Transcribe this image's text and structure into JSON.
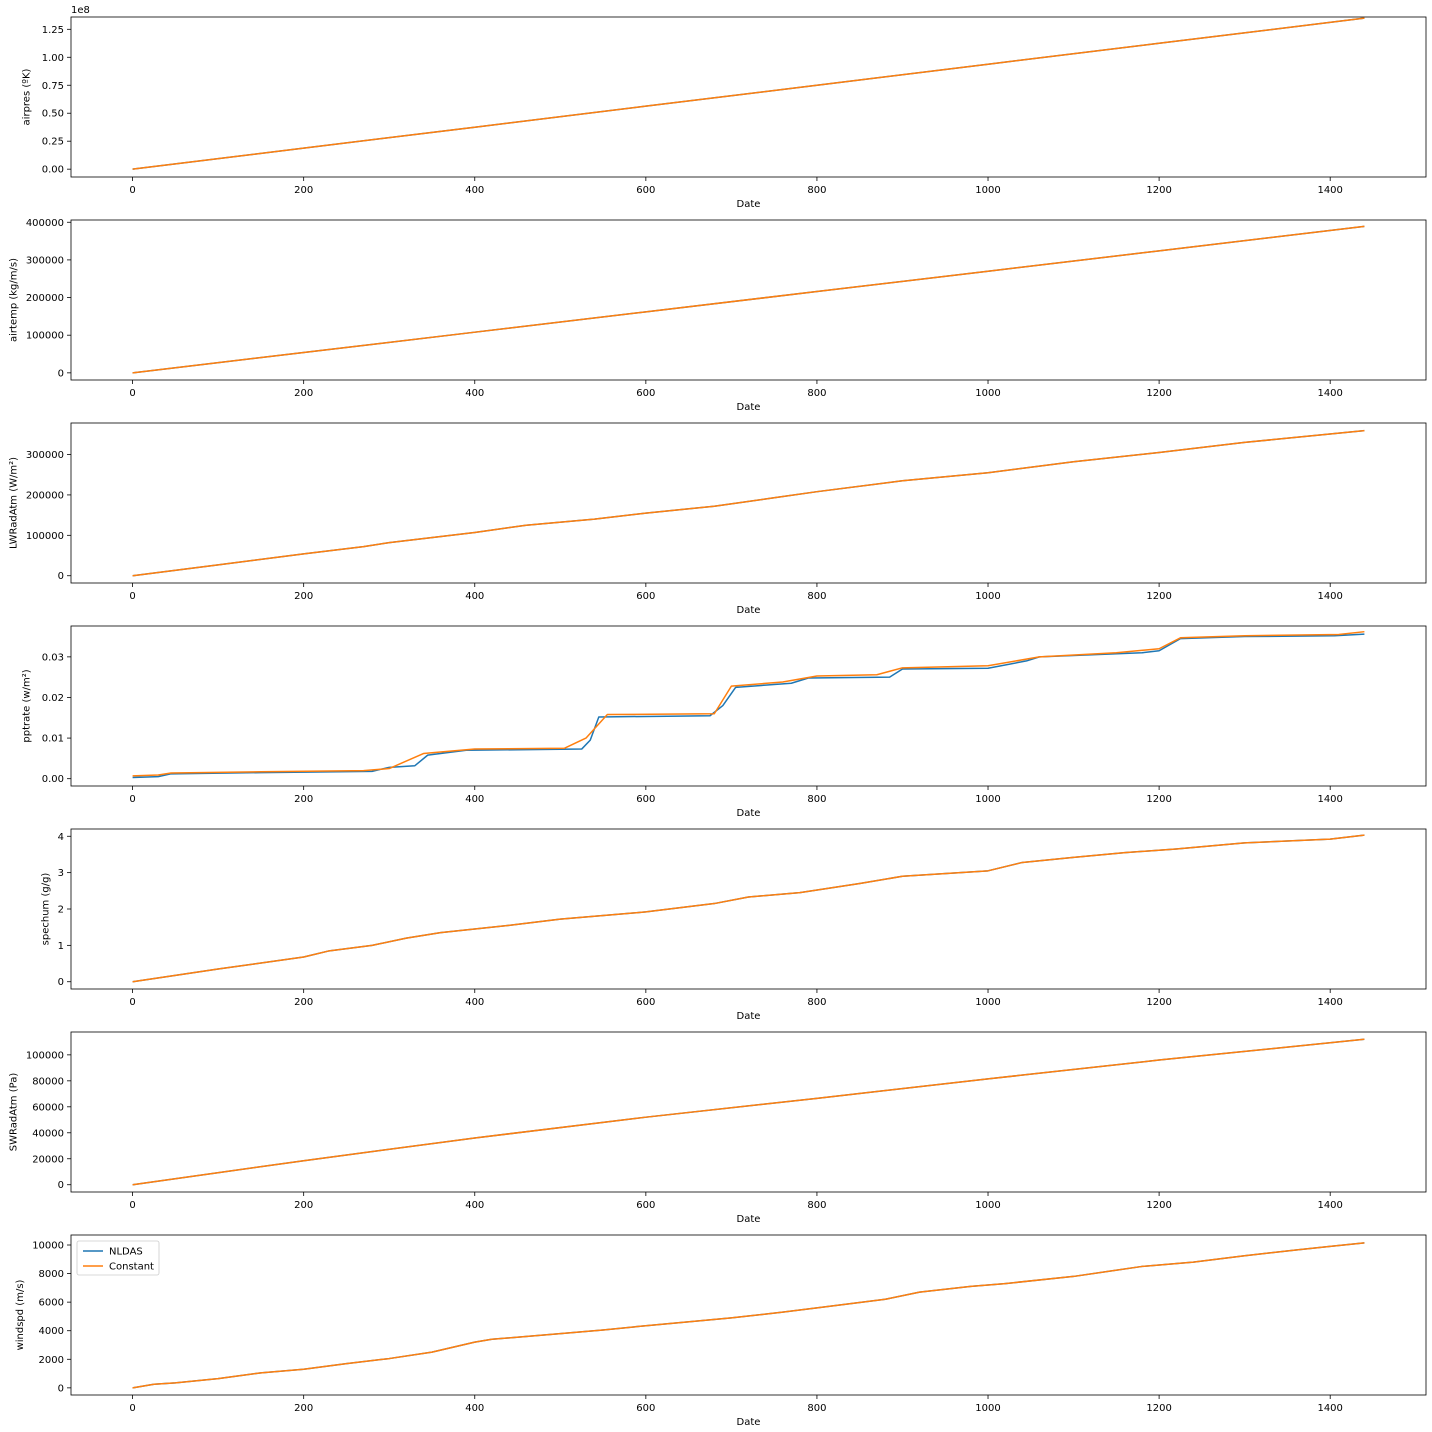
{
  "chart_data": [
    {
      "type": "line",
      "xlabel": "Date",
      "ylabel": "airpres (ºK)",
      "y_offset_label": "1e8",
      "xlim": [
        -72,
        1512
      ],
      "ylim": [
        -0.07,
        1.36
      ],
      "x_ticks": [
        0,
        200,
        400,
        600,
        800,
        1000,
        1200,
        1400
      ],
      "x_tick_labels": [
        "0",
        "200",
        "400",
        "600",
        "800",
        "1000",
        "1200",
        "1400"
      ],
      "y_ticks": [
        0.0,
        0.25,
        0.5,
        0.75,
        1.0,
        1.25
      ],
      "y_tick_labels": [
        "0.00",
        "0.25",
        "0.50",
        "0.75",
        "1.00",
        "1.25"
      ],
      "grid": false,
      "series": [
        {
          "name": "NLDAS",
          "color": "#1f77b4",
          "x": [
            0,
            200,
            400,
            600,
            800,
            1000,
            1200,
            1440
          ],
          "y": [
            0.0,
            0.188,
            0.375,
            0.563,
            0.75,
            0.938,
            1.125,
            1.35
          ]
        },
        {
          "name": "Constant",
          "color": "#ff7f0e",
          "x": [
            0,
            200,
            400,
            600,
            800,
            1000,
            1200,
            1440
          ],
          "y": [
            0.0,
            0.188,
            0.375,
            0.563,
            0.75,
            0.938,
            1.125,
            1.35
          ]
        }
      ]
    },
    {
      "type": "line",
      "xlabel": "Date",
      "ylabel": "airtemp (kg/m/s)",
      "xlim": [
        -72,
        1512
      ],
      "ylim": [
        -19000,
        406000
      ],
      "x_ticks": [
        0,
        200,
        400,
        600,
        800,
        1000,
        1200,
        1400
      ],
      "x_tick_labels": [
        "0",
        "200",
        "400",
        "600",
        "800",
        "1000",
        "1200",
        "1400"
      ],
      "y_ticks": [
        0,
        100000,
        200000,
        300000,
        400000
      ],
      "y_tick_labels": [
        "0",
        "100000",
        "200000",
        "300000",
        "400000"
      ],
      "grid": false,
      "series": [
        {
          "name": "NLDAS",
          "color": "#1f77b4",
          "x": [
            0,
            200,
            400,
            600,
            800,
            1000,
            1200,
            1440
          ],
          "y": [
            0,
            54000,
            108000,
            162000,
            216000,
            270000,
            324000,
            389000
          ]
        },
        {
          "name": "Constant",
          "color": "#ff7f0e",
          "x": [
            0,
            200,
            400,
            600,
            800,
            1000,
            1200,
            1440
          ],
          "y": [
            0,
            54000,
            108000,
            162000,
            216000,
            270000,
            324000,
            389000
          ]
        }
      ]
    },
    {
      "type": "line",
      "xlabel": "Date",
      "ylabel": "LWRadAtm (W/m²)",
      "xlim": [
        -72,
        1512
      ],
      "ylim": [
        -18000,
        378000
      ],
      "x_ticks": [
        0,
        200,
        400,
        600,
        800,
        1000,
        1200,
        1400
      ],
      "x_tick_labels": [
        "0",
        "200",
        "400",
        "600",
        "800",
        "1000",
        "1200",
        "1400"
      ],
      "y_ticks": [
        0,
        100000,
        200000,
        300000
      ],
      "y_tick_labels": [
        "0",
        "100000",
        "200000",
        "300000"
      ],
      "grid": false,
      "series": [
        {
          "name": "NLDAS",
          "color": "#1f77b4",
          "x": [
            0,
            100,
            200,
            270,
            300,
            400,
            460,
            540,
            600,
            680,
            750,
            800,
            900,
            1000,
            1100,
            1200,
            1300,
            1440
          ],
          "y": [
            0,
            27000,
            54000,
            72000,
            82000,
            107000,
            125000,
            140000,
            155000,
            172000,
            193000,
            208000,
            235000,
            255000,
            282000,
            305000,
            330000,
            359000
          ]
        },
        {
          "name": "Constant",
          "color": "#ff7f0e",
          "x": [
            0,
            100,
            200,
            270,
            300,
            400,
            460,
            540,
            600,
            680,
            750,
            800,
            900,
            1000,
            1100,
            1200,
            1300,
            1440
          ],
          "y": [
            0,
            27000,
            54000,
            72000,
            82000,
            107000,
            125000,
            140000,
            155000,
            172000,
            193000,
            208000,
            235000,
            255000,
            282000,
            305000,
            330000,
            359000
          ]
        }
      ]
    },
    {
      "type": "line",
      "xlabel": "Date",
      "ylabel": "pptrate (w/m²)",
      "xlim": [
        -72,
        1512
      ],
      "ylim": [
        -0.0018,
        0.0376
      ],
      "x_ticks": [
        0,
        200,
        400,
        600,
        800,
        1000,
        1200,
        1400
      ],
      "x_tick_labels": [
        "0",
        "200",
        "400",
        "600",
        "800",
        "1000",
        "1200",
        "1400"
      ],
      "y_ticks": [
        0.0,
        0.01,
        0.02,
        0.03
      ],
      "y_tick_labels": [
        "0.00",
        "0.01",
        "0.02",
        "0.03"
      ],
      "grid": false,
      "series": [
        {
          "name": "NLDAS",
          "color": "#1f77b4",
          "x": [
            0,
            30,
            45,
            150,
            280,
            300,
            330,
            345,
            390,
            525,
            535,
            545,
            675,
            690,
            705,
            770,
            790,
            885,
            900,
            1000,
            1045,
            1060,
            1180,
            1200,
            1225,
            1300,
            1405,
            1440
          ],
          "y": [
            0.0003,
            0.0005,
            0.0012,
            0.0015,
            0.0018,
            0.0028,
            0.0032,
            0.0058,
            0.007,
            0.0073,
            0.0095,
            0.0152,
            0.0155,
            0.018,
            0.0225,
            0.0235,
            0.0248,
            0.025,
            0.027,
            0.0272,
            0.029,
            0.03,
            0.031,
            0.0315,
            0.0345,
            0.035,
            0.0352,
            0.0356
          ]
        },
        {
          "name": "Constant",
          "color": "#ff7f0e",
          "x": [
            0,
            30,
            45,
            150,
            270,
            300,
            340,
            400,
            505,
            530,
            555,
            680,
            700,
            760,
            800,
            870,
            900,
            1000,
            1060,
            1150,
            1200,
            1225,
            1300,
            1410,
            1440
          ],
          "y": [
            0.0007,
            0.0009,
            0.0014,
            0.0017,
            0.002,
            0.0025,
            0.0062,
            0.0073,
            0.0075,
            0.01,
            0.0158,
            0.016,
            0.0228,
            0.0238,
            0.0253,
            0.0256,
            0.0273,
            0.0278,
            0.03,
            0.031,
            0.032,
            0.0347,
            0.0352,
            0.0355,
            0.0362
          ]
        }
      ]
    },
    {
      "type": "line",
      "xlabel": "Date",
      "ylabel": "spechum (g/g)",
      "xlim": [
        -72,
        1512
      ],
      "ylim": [
        -0.2,
        4.2
      ],
      "x_ticks": [
        0,
        200,
        400,
        600,
        800,
        1000,
        1200,
        1400
      ],
      "x_tick_labels": [
        "0",
        "200",
        "400",
        "600",
        "800",
        "1000",
        "1200",
        "1400"
      ],
      "y_ticks": [
        0,
        1,
        2,
        3,
        4
      ],
      "y_tick_labels": [
        "0",
        "1",
        "2",
        "3",
        "4"
      ],
      "grid": false,
      "series": [
        {
          "name": "NLDAS",
          "color": "#1f77b4",
          "x": [
            0,
            100,
            200,
            230,
            280,
            320,
            360,
            440,
            500,
            600,
            680,
            720,
            780,
            850,
            900,
            1000,
            1040,
            1100,
            1160,
            1220,
            1300,
            1400,
            1440
          ],
          "y": [
            0,
            0.35,
            0.68,
            0.85,
            1.0,
            1.2,
            1.35,
            1.55,
            1.72,
            1.92,
            2.15,
            2.33,
            2.45,
            2.7,
            2.9,
            3.05,
            3.28,
            3.42,
            3.55,
            3.65,
            3.82,
            3.92,
            4.03
          ]
        },
        {
          "name": "Constant",
          "color": "#ff7f0e",
          "x": [
            0,
            100,
            200,
            230,
            280,
            320,
            360,
            440,
            500,
            600,
            680,
            720,
            780,
            850,
            900,
            1000,
            1040,
            1100,
            1160,
            1220,
            1300,
            1400,
            1440
          ],
          "y": [
            0,
            0.35,
            0.68,
            0.85,
            1.0,
            1.2,
            1.35,
            1.55,
            1.72,
            1.92,
            2.15,
            2.33,
            2.45,
            2.7,
            2.9,
            3.05,
            3.28,
            3.42,
            3.55,
            3.65,
            3.82,
            3.92,
            4.03
          ]
        }
      ]
    },
    {
      "type": "line",
      "xlabel": "Date",
      "ylabel": "SWRadAtm (Pa)",
      "xlim": [
        -72,
        1512
      ],
      "ylim": [
        -5600,
        117600
      ],
      "x_ticks": [
        0,
        200,
        400,
        600,
        800,
        1000,
        1200,
        1400
      ],
      "x_tick_labels": [
        "0",
        "200",
        "400",
        "600",
        "800",
        "1000",
        "1200",
        "1400"
      ],
      "y_ticks": [
        0,
        20000,
        40000,
        60000,
        80000,
        100000
      ],
      "y_tick_labels": [
        "0",
        "20000",
        "40000",
        "60000",
        "80000",
        "100000"
      ],
      "grid": false,
      "series": [
        {
          "name": "NLDAS",
          "color": "#1f77b4",
          "x": [
            0,
            200,
            400,
            600,
            800,
            1000,
            1200,
            1440
          ],
          "y": [
            0,
            18500,
            36000,
            52000,
            66500,
            81500,
            96000,
            112000
          ]
        },
        {
          "name": "Constant",
          "color": "#ff7f0e",
          "x": [
            0,
            200,
            400,
            600,
            800,
            1000,
            1200,
            1440
          ],
          "y": [
            0,
            18500,
            36000,
            52000,
            66500,
            81500,
            96000,
            112000
          ]
        }
      ]
    },
    {
      "type": "line",
      "xlabel": "Date",
      "ylabel": "windspd (m/s)",
      "xlim": [
        -72,
        1512
      ],
      "ylim": [
        -500,
        10700
      ],
      "x_ticks": [
        0,
        200,
        400,
        600,
        800,
        1000,
        1200,
        1400
      ],
      "x_tick_labels": [
        "0",
        "200",
        "400",
        "600",
        "800",
        "1000",
        "1200",
        "1400"
      ],
      "y_ticks": [
        0,
        2000,
        4000,
        6000,
        8000,
        10000
      ],
      "y_tick_labels": [
        "0",
        "2000",
        "4000",
        "6000",
        "8000",
        "10000"
      ],
      "grid": false,
      "legend": "upper left",
      "series": [
        {
          "name": "NLDAS",
          "color": "#1f77b4",
          "x": [
            0,
            25,
            50,
            100,
            150,
            200,
            250,
            300,
            350,
            400,
            420,
            500,
            550,
            600,
            700,
            760,
            800,
            880,
            920,
            980,
            1020,
            1100,
            1180,
            1240,
            1300,
            1360,
            1400,
            1440
          ],
          "y": [
            0,
            250,
            350,
            650,
            1050,
            1300,
            1700,
            2050,
            2500,
            3200,
            3400,
            3800,
            4050,
            4350,
            4900,
            5300,
            5600,
            6200,
            6700,
            7100,
            7300,
            7800,
            8500,
            8800,
            9250,
            9650,
            9900,
            10150
          ]
        },
        {
          "name": "Constant",
          "color": "#ff7f0e",
          "x": [
            0,
            25,
            50,
            100,
            150,
            200,
            250,
            300,
            350,
            400,
            420,
            500,
            550,
            600,
            700,
            760,
            800,
            880,
            920,
            980,
            1020,
            1100,
            1180,
            1240,
            1300,
            1360,
            1400,
            1440
          ],
          "y": [
            0,
            250,
            350,
            650,
            1050,
            1300,
            1700,
            2050,
            2500,
            3200,
            3400,
            3800,
            4050,
            4350,
            4900,
            5300,
            5600,
            6200,
            6700,
            7100,
            7300,
            7800,
            8500,
            8800,
            9250,
            9650,
            9900,
            10150
          ]
        }
      ]
    }
  ]
}
